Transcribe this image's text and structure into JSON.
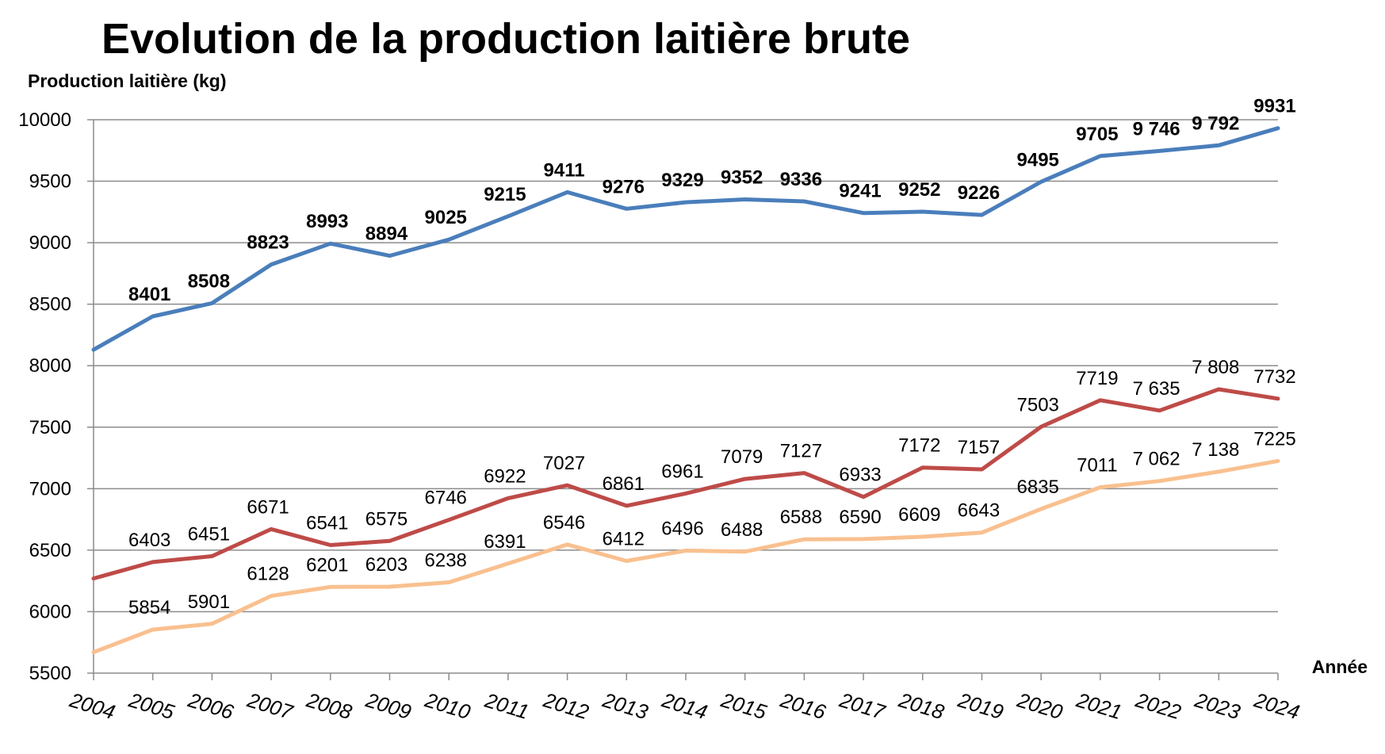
{
  "chart_data": {
    "type": "line",
    "title": "Evolution de la production laitière brute",
    "ylabel": "Production laitière (kg)",
    "xlabel": "Année",
    "ylim": [
      5500,
      10000
    ],
    "y_ticks": [
      "10000",
      "9500",
      "9000",
      "8500",
      "8000",
      "7500",
      "7000",
      "6500",
      "6000",
      "5500"
    ],
    "y_tick_values": [
      10000,
      9500,
      9000,
      8500,
      8000,
      7500,
      7000,
      6500,
      6000,
      5500
    ],
    "categories": [
      "2004",
      "2005",
      "2006",
      "2007",
      "2008",
      "2009",
      "2010",
      "2011",
      "2012",
      "2013",
      "2014",
      "2015",
      "2016",
      "2017",
      "2018",
      "2019",
      "2020",
      "2021",
      "2022",
      "2023",
      "2024"
    ],
    "grid": true,
    "series": [
      {
        "color": "#4a7ebb",
        "bold_labels": true,
        "values": [
          8130,
          8401,
          8508,
          8823,
          8993,
          8894,
          9025,
          9215,
          9411,
          9276,
          9329,
          9352,
          9336,
          9241,
          9252,
          9226,
          9495,
          9705,
          9746,
          9792,
          9931
        ],
        "labels": [
          "",
          "8401",
          "8508",
          "8823",
          "8993",
          "8894",
          "9025",
          "9215",
          "9411",
          "9276",
          "9329",
          "9352",
          "9336",
          "9241",
          "9252",
          "9226",
          "9495",
          "9705",
          "9 746",
          "9 792",
          "9931"
        ]
      },
      {
        "color": "#be4b48",
        "bold_labels": false,
        "values": [
          6270,
          6403,
          6451,
          6671,
          6541,
          6575,
          6746,
          6922,
          7027,
          6861,
          6961,
          7079,
          7127,
          6933,
          7172,
          7157,
          7503,
          7719,
          7635,
          7808,
          7732
        ],
        "labels": [
          "",
          "6403",
          "6451",
          "6671",
          "6541",
          "6575",
          "6746",
          "6922",
          "7027",
          "6861",
          "6961",
          "7079",
          "7127",
          "6933",
          "7172",
          "7157",
          "7503",
          "7719",
          "7 635",
          "7 808",
          "7732"
        ]
      },
      {
        "color": "#f9c08f",
        "bold_labels": false,
        "values": [
          5670,
          5854,
          5901,
          6128,
          6201,
          6203,
          6238,
          6391,
          6546,
          6412,
          6496,
          6488,
          6588,
          6590,
          6609,
          6643,
          6835,
          7011,
          7062,
          7138,
          7225
        ],
        "labels": [
          "",
          "5854",
          "5901",
          "6128",
          "6201",
          "6203",
          "6238",
          "6391",
          "6546",
          "6412",
          "6496",
          "6488",
          "6588",
          "6590",
          "6609",
          "6643",
          "6835",
          "7011",
          "7 062",
          "7 138",
          "7225"
        ]
      }
    ]
  }
}
